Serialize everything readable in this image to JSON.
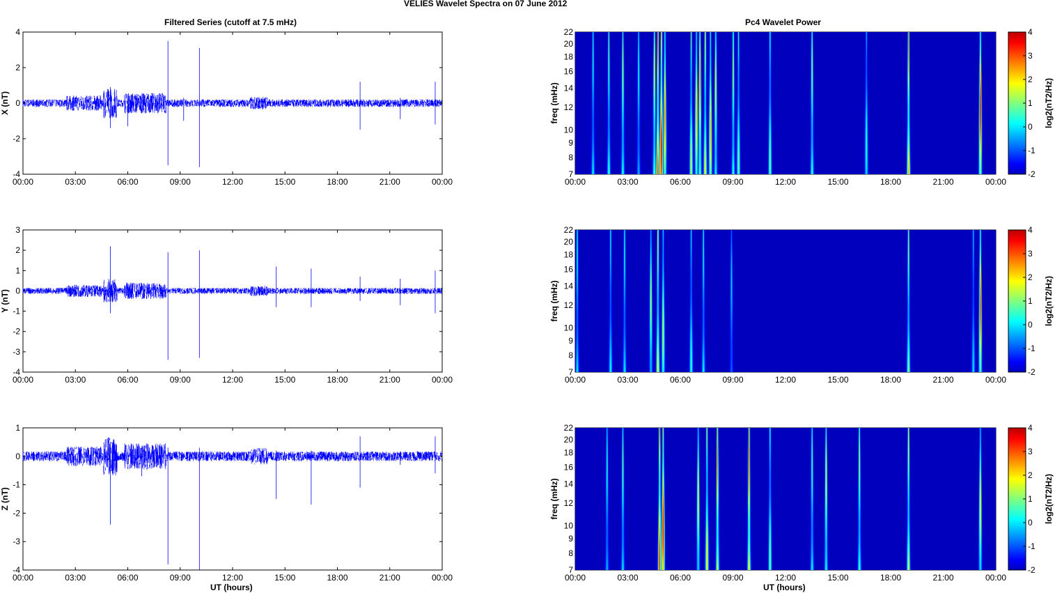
{
  "chart_data": {
    "title": "VELIES Wavelet Spectra on 07 June     2012",
    "left_title": "Filtered Series (cutoff at 7.5 mHz)",
    "right_title": "Pc4 Wavelet Power",
    "xlabel": "UT (hours)",
    "xticks": [
      "00:00",
      "03:00",
      "06:00",
      "09:00",
      "12:00",
      "15:00",
      "18:00",
      "21:00",
      "00:00"
    ],
    "xlim_hours": [
      0,
      24
    ],
    "series": [
      {
        "type": "line",
        "name": "X",
        "ylabel": "X (nT)",
        "ylim": [
          -4,
          4
        ],
        "yticks": [
          -4,
          -2,
          0,
          2,
          4
        ],
        "spikes": [
          [
            8.3,
            3.5,
            -3.5
          ],
          [
            10.1,
            3.1,
            -3.6
          ],
          [
            5.0,
            0.9,
            -1.4
          ],
          [
            6.0,
            0.5,
            -1.3
          ],
          [
            9.2,
            0.3,
            -1.0
          ],
          [
            19.3,
            1.2,
            -1.5
          ],
          [
            21.6,
            0.3,
            -0.9
          ],
          [
            23.6,
            1.2,
            -1.2
          ]
        ]
      },
      {
        "type": "line",
        "name": "Y",
        "ylabel": "Y (nT)",
        "ylim": [
          -4,
          3
        ],
        "yticks": [
          -4,
          -3,
          -2,
          -1,
          0,
          1,
          2,
          3
        ],
        "spikes": [
          [
            5.0,
            2.2,
            -1.1
          ],
          [
            8.3,
            1.9,
            -3.4
          ],
          [
            10.1,
            2.0,
            -3.3
          ],
          [
            14.5,
            1.2,
            -0.8
          ],
          [
            16.5,
            1.1,
            -0.8
          ],
          [
            19.3,
            0.7,
            -0.5
          ],
          [
            21.6,
            0.6,
            -0.7
          ],
          [
            23.6,
            1.0,
            -1.1
          ]
        ]
      },
      {
        "type": "line",
        "name": "Z",
        "ylabel": "Z (nT)",
        "ylim": [
          -4,
          1
        ],
        "yticks": [
          -4,
          -3,
          -2,
          -1,
          0,
          1
        ],
        "spikes": [
          [
            5.0,
            0.5,
            -2.4
          ],
          [
            6.8,
            0.3,
            -0.7
          ],
          [
            8.3,
            0.3,
            -3.8
          ],
          [
            10.1,
            0.3,
            -4.0
          ],
          [
            14.5,
            0.2,
            -1.5
          ],
          [
            16.5,
            0.2,
            -1.7
          ],
          [
            19.3,
            0.7,
            -1.1
          ],
          [
            21.6,
            0.1,
            -0.3
          ],
          [
            23.6,
            0.7,
            -0.6
          ]
        ]
      }
    ],
    "spectra": [
      {
        "type": "heatmap",
        "ylabel": "freq (mHz)",
        "yticks": [
          7,
          8,
          9,
          10,
          12,
          14,
          16,
          18,
          20,
          22
        ],
        "ylim": [
          7,
          22
        ],
        "events": [
          [
            1.0,
            0.5
          ],
          [
            1.9,
            1
          ],
          [
            2.7,
            1.5
          ],
          [
            3.6,
            0.5
          ],
          [
            4.5,
            2
          ],
          [
            4.7,
            3.5
          ],
          [
            4.9,
            4
          ],
          [
            5.1,
            3
          ],
          [
            6.6,
            1.5
          ],
          [
            6.9,
            2.5
          ],
          [
            7.1,
            3
          ],
          [
            7.4,
            2
          ],
          [
            7.7,
            2.5
          ],
          [
            8.0,
            2
          ],
          [
            9.0,
            1.5
          ],
          [
            9.3,
            1
          ],
          [
            11.1,
            1
          ],
          [
            13.5,
            1.5
          ],
          [
            16.6,
            0.5
          ],
          [
            19.0,
            3
          ],
          [
            23.1,
            4
          ]
        ]
      },
      {
        "type": "heatmap",
        "ylabel": "freq (mHz)",
        "yticks": [
          7,
          8,
          9,
          10,
          12,
          14,
          16,
          18,
          20,
          22
        ],
        "ylim": [
          7,
          22
        ],
        "events": [
          [
            0.1,
            0.5
          ],
          [
            2.0,
            0.3
          ],
          [
            2.8,
            0.5
          ],
          [
            4.3,
            1.5
          ],
          [
            4.7,
            2
          ],
          [
            5.0,
            1.5
          ],
          [
            6.6,
            0.5
          ],
          [
            7.3,
            0.5
          ],
          [
            8.9,
            0
          ],
          [
            19.0,
            1.5
          ],
          [
            22.7,
            0
          ],
          [
            23.1,
            3.5
          ]
        ]
      },
      {
        "type": "heatmap",
        "ylabel": "freq (mHz)",
        "yticks": [
          7,
          8,
          9,
          10,
          12,
          14,
          16,
          18,
          20,
          22
        ],
        "ylim": [
          7,
          22
        ],
        "events": [
          [
            1.8,
            0.5
          ],
          [
            2.7,
            1
          ],
          [
            4.8,
            3.5
          ],
          [
            5.0,
            4
          ],
          [
            7.0,
            2
          ],
          [
            7.5,
            2
          ],
          [
            8.1,
            3
          ],
          [
            9.9,
            3.5
          ],
          [
            11.1,
            1
          ],
          [
            13.5,
            1
          ],
          [
            14.3,
            2
          ],
          [
            16.2,
            1.5
          ],
          [
            19.0,
            2
          ],
          [
            23.1,
            2
          ]
        ]
      }
    ],
    "colorbar": {
      "label": "log2(nT2/Hz)",
      "ticks": [
        -2,
        -1,
        0,
        1,
        2,
        3,
        4
      ],
      "clim": [
        -2,
        4
      ]
    }
  }
}
